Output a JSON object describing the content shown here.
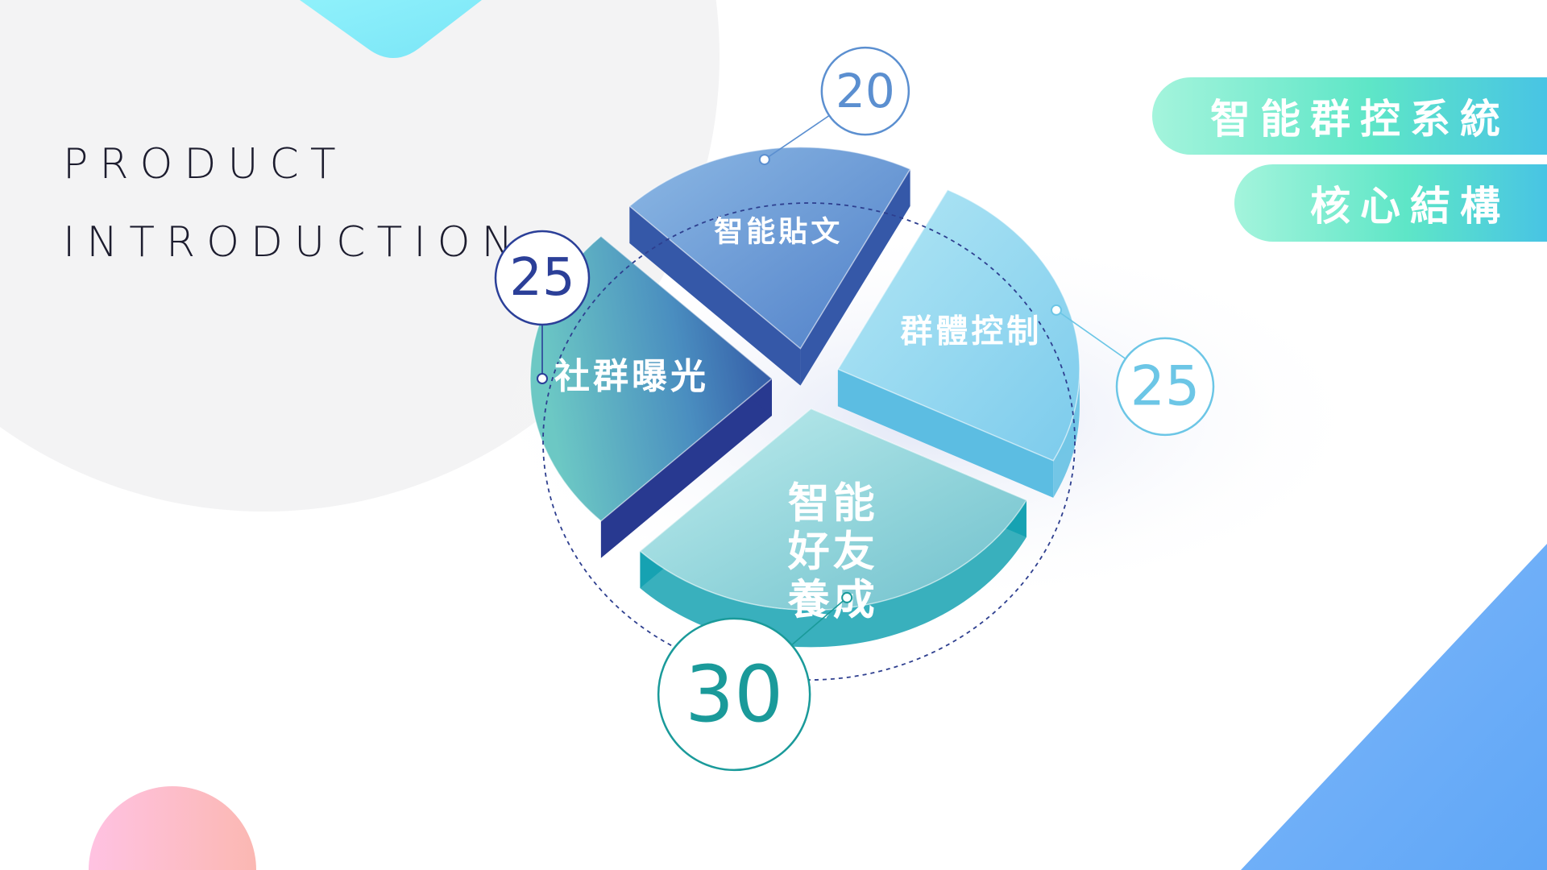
{
  "heading": {
    "line1": "PRODUCT",
    "line2": "INTRODUCTION"
  },
  "badges": {
    "title": "智能群控系統",
    "subtitle": "核心結構"
  },
  "colors": {
    "accent_teal": "#1a9a9a",
    "accent_navy": "#2b3f98",
    "accent_blue": "#5b8fd0",
    "accent_sky": "#6cc6e6"
  },
  "chart_data": {
    "type": "pie",
    "style": "3d-exploded",
    "slices": [
      {
        "label": "社群曝光",
        "value": 25
      },
      {
        "label": "智能貼文",
        "value": 20
      },
      {
        "label": "群體控制",
        "value": 25
      },
      {
        "label": "智能好友養成",
        "value": 30
      }
    ]
  }
}
